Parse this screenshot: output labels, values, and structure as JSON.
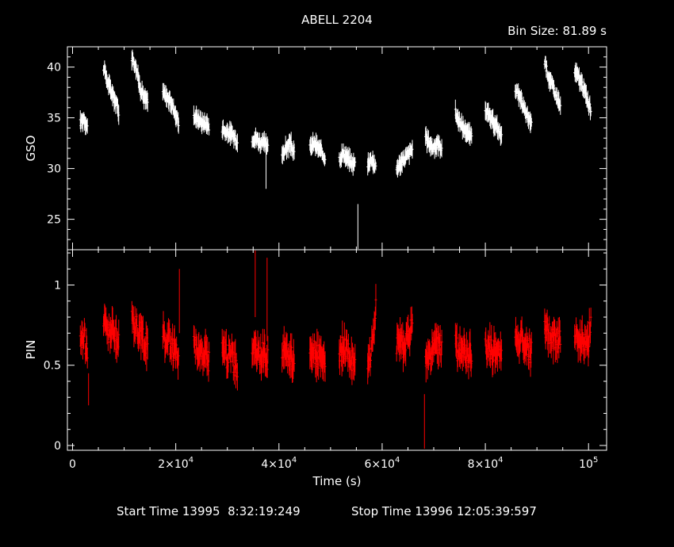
{
  "title": "ABELL 2204",
  "bin_size": "Bin Size: 81.89 s",
  "footer": {
    "start": "Start Time 13995  8:32:19:249",
    "stop": "Stop Time 13996 12:05:39:597"
  },
  "colors": {
    "gso": "#ffffff",
    "pin": "#ff0000",
    "axes": "#ffffff",
    "background": "#000000"
  },
  "chart_data": {
    "type": "line",
    "xlabel": "Time (s)",
    "xlim": [
      -1000,
      103500
    ],
    "xticks": [
      {
        "value": 0,
        "label": "0"
      },
      {
        "value": 20000,
        "label": "2×10",
        "exp": "4"
      },
      {
        "value": 40000,
        "label": "4×10",
        "exp": "4"
      },
      {
        "value": 60000,
        "label": "6×10",
        "exp": "4"
      },
      {
        "value": 80000,
        "label": "8×10",
        "exp": "4"
      },
      {
        "value": 100000,
        "label": "10",
        "exp": "5"
      }
    ],
    "panels": [
      {
        "name": "GSO",
        "ylabel": "GSO",
        "ylim": [
          22,
          42
        ],
        "yticks": [
          25,
          30,
          35,
          40
        ],
        "color": "#ffffff",
        "series": [
          {
            "x": [
              1500,
              2200,
              2900
            ],
            "y": [
              34.5,
              35.0,
              34.0
            ]
          },
          {
            "x": [
              6000,
              6800,
              7600,
              8400,
              9000
            ],
            "y": [
              40.0,
              38.5,
              37.5,
              36.5,
              35.5
            ]
          },
          {
            "x": [
              11500,
              12300,
              13100,
              13900,
              14600
            ],
            "y": [
              41.0,
              40.0,
              38.0,
              37.0,
              36.5
            ]
          },
          {
            "x": [
              17500,
              18300,
              19100,
              19900,
              20600
            ],
            "y": [
              37.5,
              37.0,
              36.5,
              35.5,
              34.5
            ]
          },
          {
            "x": [
              23500,
              24300,
              25100,
              25900,
              26500
            ],
            "y": [
              35.0,
              35.0,
              34.5,
              34.5,
              34.0
            ]
          },
          {
            "x": [
              29000,
              29800,
              30600,
              31400,
              32000
            ],
            "y": [
              34.0,
              33.5,
              33.5,
              33.0,
              32.5
            ]
          },
          {
            "x": [
              34800,
              35600,
              36400,
              37200,
              37900
            ],
            "y": [
              33.0,
              33.0,
              32.5,
              32.5,
              32.0
            ]
          },
          {
            "x": [
              40600,
              41400,
              42200,
              43000
            ],
            "y": [
              31.5,
              32.0,
              32.5,
              31.5
            ]
          },
          {
            "x": [
              46000,
              46800,
              47600,
              48400,
              49000
            ],
            "y": [
              32.0,
              32.5,
              32.0,
              31.5,
              31.0
            ]
          },
          {
            "x": [
              51700,
              52500,
              53300,
              54100,
              54800
            ],
            "y": [
              31.0,
              31.5,
              31.0,
              30.5,
              30.5
            ]
          },
          {
            "x": [
              57200,
              58000,
              58800
            ],
            "y": [
              30.5,
              31.0,
              30.0
            ]
          },
          {
            "x": [
              62800,
              63600,
              64400,
              65200,
              65900
            ],
            "y": [
              30.0,
              30.5,
              31.0,
              31.5,
              32.0
            ]
          },
          {
            "x": [
              68400,
              69200,
              70000,
              70800,
              71600
            ],
            "y": [
              33.0,
              32.5,
              32.0,
              32.5,
              32.0
            ]
          },
          {
            "x": [
              74200,
              75000,
              75800,
              76600,
              77400
            ],
            "y": [
              35.5,
              34.5,
              34.0,
              33.5,
              33.0
            ]
          },
          {
            "x": [
              80000,
              80800,
              81600,
              82400,
              83200
            ],
            "y": [
              36.0,
              35.0,
              34.5,
              34.0,
              33.0
            ]
          },
          {
            "x": [
              85800,
              86600,
              87400,
              88200,
              89000
            ],
            "y": [
              38.0,
              37.0,
              36.0,
              35.0,
              34.5
            ]
          },
          {
            "x": [
              91500,
              92300,
              93100,
              93900,
              94600
            ],
            "y": [
              40.5,
              39.0,
              38.0,
              37.0,
              36.0
            ]
          },
          {
            "x": [
              97300,
              98100,
              98900,
              99700,
              100500
            ],
            "y": [
              39.5,
              39.0,
              38.0,
              37.0,
              35.5
            ]
          }
        ],
        "spikes": [
          {
            "x": 37500,
            "low": 28.0,
            "high": 32.5
          },
          {
            "x": 55300,
            "low": 22.0,
            "high": 26.5
          }
        ]
      },
      {
        "name": "PIN",
        "ylabel": "PIN",
        "ylim": [
          -0.03,
          1.22
        ],
        "yticks": [
          0,
          0.5,
          1
        ],
        "color": "#ff0000",
        "series": [
          {
            "x": [
              1500,
              2200,
              2900
            ],
            "y": [
              0.62,
              0.7,
              0.55
            ]
          },
          {
            "x": [
              6000,
              6800,
              7600,
              8400,
              9000
            ],
            "y": [
              0.78,
              0.7,
              0.72,
              0.66,
              0.62
            ]
          },
          {
            "x": [
              11500,
              12300,
              13100,
              13900,
              14600
            ],
            "y": [
              0.8,
              0.74,
              0.7,
              0.65,
              0.6
            ]
          },
          {
            "x": [
              17500,
              18300,
              19100,
              19900,
              20600
            ],
            "y": [
              0.7,
              0.66,
              0.63,
              0.58,
              0.56
            ]
          },
          {
            "x": [
              23500,
              24300,
              25100,
              25900,
              26500
            ],
            "y": [
              0.64,
              0.6,
              0.55,
              0.58,
              0.52
            ]
          },
          {
            "x": [
              29000,
              29800,
              30600,
              31400,
              32000
            ],
            "y": [
              0.66,
              0.55,
              0.6,
              0.5,
              0.48
            ]
          },
          {
            "x": [
              34800,
              35600,
              36400,
              37200,
              37900
            ],
            "y": [
              0.63,
              0.58,
              0.55,
              0.6,
              0.52
            ]
          },
          {
            "x": [
              40600,
              41400,
              42200,
              43000
            ],
            "y": [
              0.58,
              0.62,
              0.55,
              0.52
            ]
          },
          {
            "x": [
              46000,
              46800,
              47600,
              48400,
              49000
            ],
            "y": [
              0.63,
              0.58,
              0.55,
              0.52,
              0.5
            ]
          },
          {
            "x": [
              51700,
              52500,
              53300,
              54100,
              54800
            ],
            "y": [
              0.55,
              0.62,
              0.58,
              0.54,
              0.5
            ]
          },
          {
            "x": [
              57200,
              58000,
              58800
            ],
            "y": [
              0.5,
              0.6,
              0.9
            ]
          },
          {
            "x": [
              62800,
              63600,
              64400,
              65200,
              65900
            ],
            "y": [
              0.62,
              0.65,
              0.6,
              0.7,
              0.75
            ]
          },
          {
            "x": [
              68400,
              69200,
              70000,
              70800,
              71600
            ],
            "y": [
              0.52,
              0.56,
              0.6,
              0.65,
              0.6
            ]
          },
          {
            "x": [
              74200,
              75000,
              75800,
              76600,
              77400
            ],
            "y": [
              0.62,
              0.58,
              0.6,
              0.55,
              0.56
            ]
          },
          {
            "x": [
              80000,
              80800,
              81600,
              82400,
              83200
            ],
            "y": [
              0.6,
              0.62,
              0.58,
              0.6,
              0.55
            ]
          },
          {
            "x": [
              85800,
              86600,
              87400,
              88200,
              89000
            ],
            "y": [
              0.7,
              0.66,
              0.65,
              0.6,
              0.58
            ]
          },
          {
            "x": [
              91500,
              92300,
              93100,
              93900,
              94600
            ],
            "y": [
              0.72,
              0.7,
              0.68,
              0.65,
              0.7
            ]
          },
          {
            "x": [
              97300,
              98100,
              98900,
              99700,
              100500
            ],
            "y": [
              0.7,
              0.68,
              0.65,
              0.62,
              0.75
            ]
          }
        ],
        "spikes": [
          {
            "x": 20700,
            "low": 0.7,
            "high": 1.1
          },
          {
            "x": 35400,
            "low": 0.8,
            "high": 1.22
          },
          {
            "x": 37700,
            "low": 0.65,
            "high": 1.17
          },
          {
            "x": 3100,
            "low": 0.25,
            "high": 0.45
          },
          {
            "x": 68200,
            "low": -0.02,
            "high": 0.32
          }
        ]
      }
    ]
  }
}
